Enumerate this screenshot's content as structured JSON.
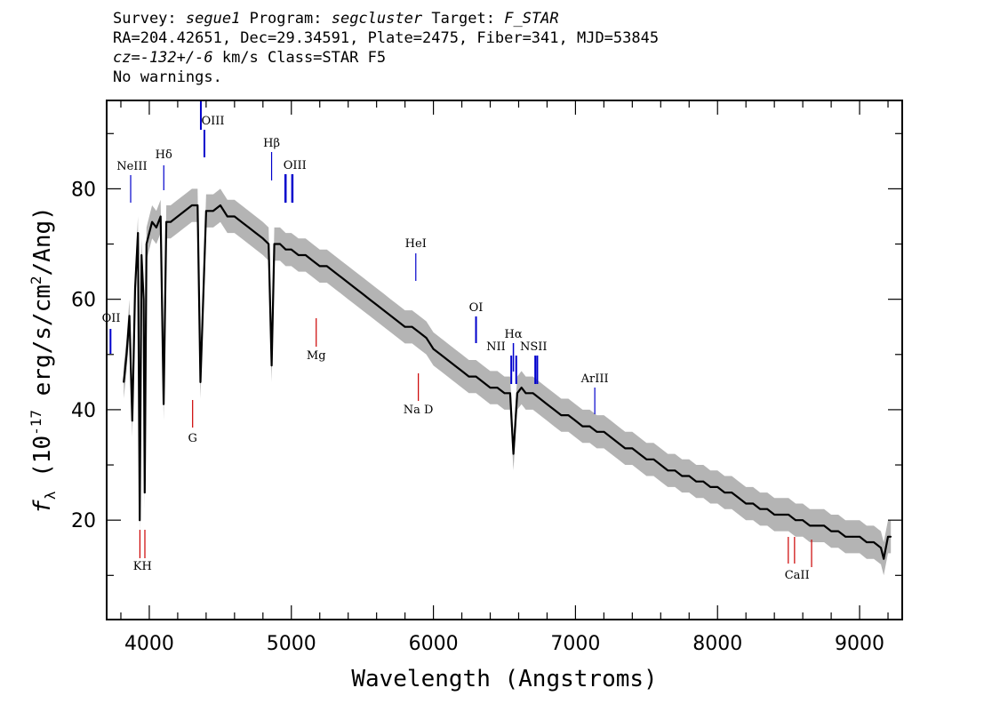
{
  "header": {
    "survey_label": "Survey:",
    "survey_value": "segue1",
    "program_label": "Program:",
    "program_value": "segcluster",
    "target_label": "Target:",
    "target_value": "F_STAR",
    "line2": "RA=204.42651, Dec=29.34591, Plate=2475, Fiber=341, MJD=53845",
    "cz_value": "cz=-132+/-6",
    "cz_rest": " km/s Class=STAR F5",
    "line4": "No warnings."
  },
  "colors": {
    "spectrum": "#000000",
    "error_band": "#b4b4b4",
    "emission_line": "#0000cc",
    "absorption_line": "#cc0000"
  },
  "chart_data": {
    "type": "line",
    "xlabel": "Wavelength (Angstroms)",
    "ylabel": "f_λ (10^-17 erg/s/cm^2/Ang)",
    "xlim": [
      3700,
      9300
    ],
    "ylim": [
      2,
      96
    ],
    "xticks": [
      4000,
      5000,
      6000,
      7000,
      8000,
      9000
    ],
    "yticks": [
      20,
      40,
      60,
      80
    ],
    "x_minor_step": 200,
    "y_minor_step": 10,
    "grid": false,
    "series": [
      {
        "x": [
          3820,
          3840,
          3860,
          3880,
          3900,
          3920,
          3933,
          3945,
          3960,
          3968,
          3980,
          4000,
          4020,
          4050,
          4080,
          4101,
          4120,
          4150,
          4200,
          4250,
          4300,
          4340,
          4360,
          4400,
          4450,
          4500,
          4550,
          4600,
          4650,
          4700,
          4750,
          4800,
          4840,
          4861,
          4880,
          4920,
          4960,
          5000,
          5050,
          5100,
          5150,
          5200,
          5250,
          5300,
          5350,
          5400,
          5450,
          5500,
          5550,
          5600,
          5650,
          5700,
          5750,
          5800,
          5850,
          5900,
          5950,
          6000,
          6050,
          6100,
          6150,
          6200,
          6250,
          6300,
          6350,
          6400,
          6450,
          6500,
          6540,
          6563,
          6590,
          6620,
          6650,
          6700,
          6750,
          6800,
          6850,
          6900,
          6950,
          7000,
          7050,
          7100,
          7150,
          7200,
          7250,
          7300,
          7350,
          7400,
          7450,
          7500,
          7550,
          7600,
          7650,
          7700,
          7750,
          7800,
          7850,
          7900,
          7950,
          8000,
          8050,
          8100,
          8150,
          8200,
          8250,
          8300,
          8350,
          8400,
          8450,
          8500,
          8550,
          8600,
          8650,
          8700,
          8750,
          8800,
          8850,
          8900,
          8950,
          9000,
          9050,
          9100,
          9150,
          9170,
          9200,
          9220
        ],
        "y": [
          45,
          50,
          57,
          38,
          62,
          72,
          20,
          68,
          60,
          25,
          70,
          72,
          74,
          73,
          75,
          41,
          74,
          74,
          75,
          76,
          77,
          77,
          45,
          76,
          76,
          77,
          75,
          75,
          74,
          73,
          72,
          71,
          70,
          48,
          70,
          70,
          69,
          69,
          68,
          68,
          67,
          66,
          66,
          65,
          64,
          63,
          62,
          61,
          60,
          59,
          58,
          57,
          56,
          55,
          55,
          54,
          53,
          51,
          50,
          49,
          48,
          47,
          46,
          46,
          45,
          44,
          44,
          43,
          43,
          32,
          43,
          44,
          43,
          43,
          42,
          41,
          40,
          39,
          39,
          38,
          37,
          37,
          36,
          36,
          35,
          34,
          33,
          33,
          32,
          31,
          31,
          30,
          29,
          29,
          28,
          28,
          27,
          27,
          26,
          26,
          25,
          25,
          24,
          23,
          23,
          22,
          22,
          21,
          21,
          21,
          20,
          20,
          19,
          19,
          19,
          18,
          18,
          17,
          17,
          17,
          16,
          16,
          15,
          13,
          17,
          17
        ],
        "y_err": 3
      }
    ],
    "emission_lines": [
      {
        "label": "OII",
        "x": 3727
      },
      {
        "label": "NeIII",
        "x": 3869
      },
      {
        "label": "Hδ",
        "x": 4102
      },
      {
        "label": "OIII",
        "x": 4363
      },
      {
        "label": "Hβ",
        "x": 4861
      },
      {
        "label": "OIII",
        "x": 4959
      },
      {
        "label": "OIII",
        "x": 5007
      },
      {
        "label": "HeI",
        "x": 5876
      },
      {
        "label": "OI",
        "x": 6300
      },
      {
        "label": "NII",
        "x": 6548
      },
      {
        "label": "Hα",
        "x": 6563
      },
      {
        "label": "NII",
        "x": 6583
      },
      {
        "label": "SII",
        "x": 6717
      },
      {
        "label": "SII",
        "x": 6731
      },
      {
        "label": "ArIII",
        "x": 7136
      }
    ],
    "absorption_lines": [
      {
        "label": "K",
        "x": 3934
      },
      {
        "label": "H",
        "x": 3969
      },
      {
        "label": "G",
        "x": 4305
      },
      {
        "label": "Mg",
        "x": 5175
      },
      {
        "label": "Na D",
        "x": 5894
      },
      {
        "label": "CaII",
        "x": 8498
      },
      {
        "label": "CaII",
        "x": 8542
      },
      {
        "label": "CaII",
        "x": 8662
      }
    ],
    "line_label_texts": {
      "OII": "OII",
      "NeIII": "NeIII",
      "Hdelta": "Hδ",
      "OIII_a": "OIII",
      "Hbeta": "Hβ",
      "OIII_b": "OIII",
      "HeI": "HeI",
      "OI": "OI",
      "NII": "NII",
      "Halpha": "Hα",
      "NSII": "NSII",
      "ArIII": "ArIII",
      "KH": "KH",
      "G": "G",
      "Mg": "Mg",
      "NaD": "Na D",
      "CaII": "CaII"
    }
  }
}
